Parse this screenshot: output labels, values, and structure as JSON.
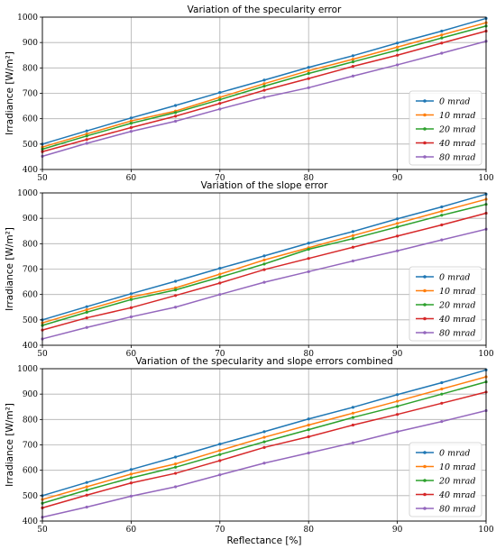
{
  "chart_data": [
    {
      "type": "line",
      "title": "Variation of the specularity error",
      "xlabel": "",
      "ylabel": "Irradiance [W/m²]",
      "xlim": [
        50,
        100
      ],
      "ylim": [
        400,
        1000
      ],
      "xticks": [
        50,
        60,
        70,
        80,
        90,
        100
      ],
      "yticks": [
        400,
        500,
        600,
        700,
        800,
        900,
        1000
      ],
      "grid": true,
      "legend_position": "lower-right",
      "x": [
        50,
        55,
        60,
        65,
        70,
        75,
        80,
        85,
        90,
        95,
        100
      ],
      "series": [
        {
          "name": "0 mrad",
          "values": [
            500,
            552,
            603,
            652,
            703,
            752,
            802,
            848,
            898,
            945,
            995
          ]
        },
        {
          "name": "10 mrad",
          "values": [
            488,
            540,
            591,
            630,
            684,
            738,
            789,
            834,
            882,
            930,
            978
          ]
        },
        {
          "name": "20 mrad",
          "values": [
            480,
            532,
            582,
            624,
            675,
            728,
            778,
            824,
            870,
            918,
            965
          ]
        },
        {
          "name": "40 mrad",
          "values": [
            470,
            518,
            565,
            610,
            660,
            712,
            758,
            806,
            850,
            898,
            945
          ]
        },
        {
          "name": "80 mrad",
          "values": [
            452,
            503,
            550,
            590,
            638,
            684,
            722,
            768,
            812,
            858,
            905
          ]
        }
      ]
    },
    {
      "type": "line",
      "title": "Variation of the slope error",
      "xlabel": "",
      "ylabel": "Irradiance [W/m²]",
      "xlim": [
        50,
        100
      ],
      "ylim": [
        400,
        1000
      ],
      "xticks": [
        50,
        60,
        70,
        80,
        90,
        100
      ],
      "yticks": [
        400,
        500,
        600,
        700,
        800,
        900,
        1000
      ],
      "grid": true,
      "legend_position": "lower-right",
      "x": [
        50,
        55,
        60,
        65,
        70,
        75,
        80,
        85,
        90,
        95,
        100
      ],
      "series": [
        {
          "name": "0 mrad",
          "values": [
            500,
            552,
            603,
            652,
            703,
            752,
            802,
            848,
            898,
            945,
            995
          ]
        },
        {
          "name": "10 mrad",
          "values": [
            488,
            540,
            590,
            626,
            680,
            736,
            784,
            832,
            880,
            928,
            975
          ]
        },
        {
          "name": "20 mrad",
          "values": [
            478,
            530,
            580,
            618,
            668,
            720,
            778,
            820,
            866,
            912,
            955
          ]
        },
        {
          "name": "40 mrad",
          "values": [
            460,
            508,
            548,
            596,
            645,
            698,
            742,
            786,
            830,
            874,
            920
          ]
        },
        {
          "name": "80 mrad",
          "values": [
            425,
            470,
            512,
            550,
            600,
            648,
            690,
            732,
            772,
            815,
            857
          ]
        }
      ]
    },
    {
      "type": "line",
      "title": "Variation of the specularity and slope errors combined",
      "xlabel": "Reflectance [%]",
      "ylabel": "Irradiance [W/m²]",
      "xlim": [
        50,
        100
      ],
      "ylim": [
        400,
        1000
      ],
      "xticks": [
        50,
        60,
        70,
        80,
        90,
        100
      ],
      "yticks": [
        400,
        500,
        600,
        700,
        800,
        900,
        1000
      ],
      "grid": true,
      "legend_position": "lower-right",
      "x": [
        50,
        55,
        60,
        65,
        70,
        75,
        80,
        85,
        90,
        95,
        100
      ],
      "series": [
        {
          "name": "0 mrad",
          "values": [
            500,
            552,
            603,
            652,
            703,
            752,
            802,
            848,
            898,
            945,
            995
          ]
        },
        {
          "name": "10 mrad",
          "values": [
            485,
            535,
            585,
            625,
            678,
            730,
            778,
            825,
            872,
            920,
            968
          ]
        },
        {
          "name": "20 mrad",
          "values": [
            470,
            522,
            570,
            612,
            662,
            712,
            760,
            808,
            852,
            900,
            948
          ]
        },
        {
          "name": "40 mrad",
          "values": [
            452,
            502,
            550,
            588,
            638,
            690,
            732,
            778,
            820,
            864,
            908
          ]
        },
        {
          "name": "80 mrad",
          "values": [
            415,
            455,
            498,
            535,
            582,
            628,
            668,
            708,
            752,
            792,
            835
          ]
        }
      ]
    }
  ],
  "colors": [
    "#1f77b4",
    "#ff7f0e",
    "#2ca02c",
    "#d62728",
    "#9467bd"
  ],
  "grid_color": "#b0b0b0"
}
